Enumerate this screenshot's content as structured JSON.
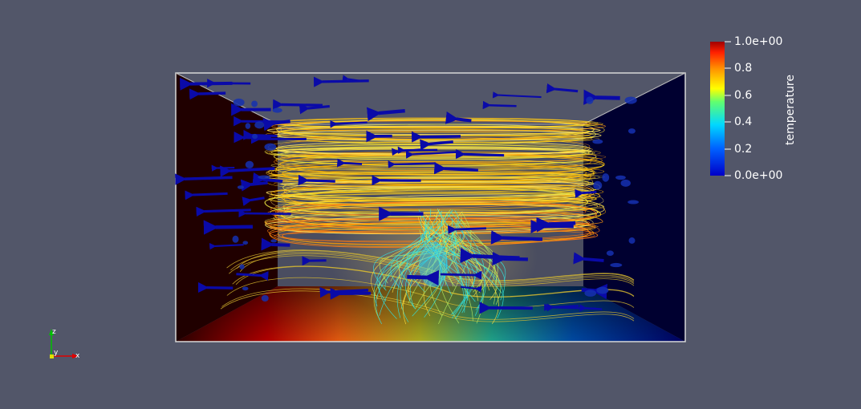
{
  "colorbar": {
    "title": "temperature",
    "ticks": [
      "1.0e+00",
      "0.8",
      "0.6",
      "0.4",
      "0.2",
      "0.0e+00"
    ],
    "colormap": "rainbow-uniform",
    "range": [
      0.0,
      1.0
    ],
    "colors": [
      "#0000c8",
      "#0050ff",
      "#00d0ff",
      "#40ff80",
      "#ffff00",
      "#ffa000",
      "#ff3000",
      "#a00000"
    ]
  },
  "axes_orientation": {
    "x_label": "x",
    "y_label": "y",
    "z_label": "z"
  },
  "scene": {
    "background": "#525669",
    "glyph_color": "#0a0aa8",
    "icons": [
      "axes-triad-icon"
    ]
  }
}
